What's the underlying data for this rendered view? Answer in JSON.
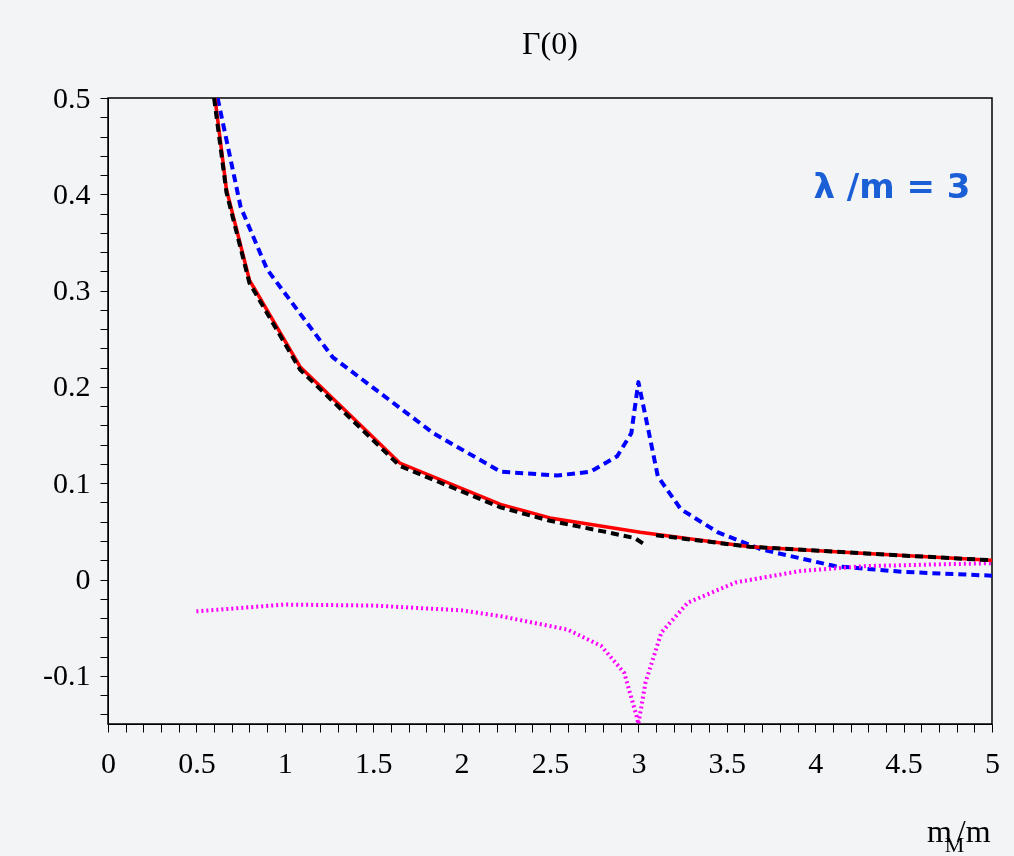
{
  "chart_data": {
    "type": "line",
    "title": "Γ(0)",
    "xlabel": "m$_{M}$/m",
    "annotations": [
      "λ /m = 3"
    ],
    "xlim": [
      0,
      5
    ],
    "ylim": [
      -0.15,
      0.5
    ],
    "xticks": [
      0,
      {
        "value": 0.1,
        "label": null
      },
      {
        "value": 0.2,
        "label": null
      },
      {
        "value": 0.3,
        "label": null
      },
      {
        "value": 0.4,
        "label": null
      },
      0.5,
      {
        "value": 0.6,
        "label": null
      },
      {
        "value": 0.7,
        "label": null
      },
      {
        "value": 0.8,
        "label": null
      },
      {
        "value": 0.9,
        "label": null
      },
      1,
      {
        "value": 1.1,
        "label": null
      },
      {
        "value": 1.2,
        "label": null
      },
      {
        "value": 1.3,
        "label": null
      },
      {
        "value": 1.4,
        "label": null
      },
      1.5,
      {
        "value": 1.6,
        "label": null
      },
      {
        "value": 1.7,
        "label": null
      },
      {
        "value": 1.8,
        "label": null
      },
      {
        "value": 1.9,
        "label": null
      },
      2,
      {
        "value": 2.1,
        "label": null
      },
      {
        "value": 2.2,
        "label": null
      },
      {
        "value": 2.3,
        "label": null
      },
      {
        "value": 2.4,
        "label": null
      },
      2.5,
      {
        "value": 2.6,
        "label": null
      },
      {
        "value": 2.7,
        "label": null
      },
      {
        "value": 2.8,
        "label": null
      },
      {
        "value": 2.9,
        "label": null
      },
      3,
      {
        "value": 3.1,
        "label": null
      },
      {
        "value": 3.2,
        "label": null
      },
      {
        "value": 3.3,
        "label": null
      },
      {
        "value": 3.4,
        "label": null
      },
      3.5,
      {
        "value": 3.6,
        "label": null
      },
      {
        "value": 3.7,
        "label": null
      },
      {
        "value": 3.8,
        "label": null
      },
      {
        "value": 3.9,
        "label": null
      },
      4,
      {
        "value": 4.1,
        "label": null
      },
      {
        "value": 4.2,
        "label": null
      },
      {
        "value": 4.3,
        "label": null
      },
      {
        "value": 4.4,
        "label": null
      },
      4.5,
      {
        "value": 4.6,
        "label": null
      },
      {
        "value": 4.7,
        "label": null
      },
      {
        "value": 4.8,
        "label": null
      },
      {
        "value": 4.9,
        "label": null
      },
      5
    ],
    "yticks": [
      {
        "value": -0.14,
        "label": null
      },
      {
        "value": -0.12,
        "label": null
      },
      -0.1,
      {
        "value": -0.08,
        "label": null
      },
      {
        "value": -0.06,
        "label": null
      },
      {
        "value": -0.04,
        "label": null
      },
      {
        "value": -0.02,
        "label": null
      },
      0,
      {
        "value": 0.02,
        "label": null
      },
      {
        "value": 0.04,
        "label": null
      },
      {
        "value": 0.06,
        "label": null
      },
      {
        "value": 0.08,
        "label": null
      },
      0.1,
      {
        "value": 0.12,
        "label": null
      },
      {
        "value": 0.14,
        "label": null
      },
      {
        "value": 0.16,
        "label": null
      },
      {
        "value": 0.18,
        "label": null
      },
      0.2,
      {
        "value": 0.22,
        "label": null
      },
      {
        "value": 0.24,
        "label": null
      },
      {
        "value": 0.26,
        "label": null
      },
      {
        "value": 0.28,
        "label": null
      },
      0.3,
      {
        "value": 0.32,
        "label": null
      },
      {
        "value": 0.34,
        "label": null
      },
      {
        "value": 0.36,
        "label": null
      },
      {
        "value": 0.38,
        "label": null
      },
      0.4,
      {
        "value": 0.42,
        "label": null
      },
      {
        "value": 0.44,
        "label": null
      },
      {
        "value": 0.46,
        "label": null
      },
      {
        "value": 0.48,
        "label": null
      },
      0.5
    ],
    "grid": false,
    "marker": "none",
    "series": [
      {
        "color": "#0000ff",
        "line_style": "dashed",
        "x": [
          0.62,
          0.75,
          0.9,
          1.27,
          1.84,
          2.22,
          2.54,
          2.73,
          2.88,
          2.96,
          3.0,
          3.06,
          3.11,
          3.24,
          3.45,
          3.7,
          4.11,
          4.49,
          5.0
        ],
        "values": [
          0.5,
          0.387,
          0.322,
          0.231,
          0.152,
          0.112,
          0.108,
          0.112,
          0.128,
          0.152,
          0.205,
          0.152,
          0.107,
          0.073,
          0.049,
          0.031,
          0.014,
          0.008,
          0.004
        ]
      },
      {
        "color": "#ff00ff",
        "line_style": "dotted",
        "x": [
          0.5,
          1.0,
          1.5,
          2.0,
          2.22,
          2.6,
          2.79,
          2.92,
          2.99,
          3.0,
          3.04,
          3.13,
          3.28,
          3.55,
          3.92,
          4.29,
          5.0
        ],
        "values": [
          -0.033,
          -0.026,
          -0.027,
          -0.032,
          -0.038,
          -0.052,
          -0.069,
          -0.097,
          -0.142,
          -0.15,
          -0.107,
          -0.055,
          -0.024,
          -0.003,
          0.009,
          0.014,
          0.017
        ]
      },
      {
        "color": "#ff0000",
        "line_style": "solid",
        "x": [
          0.605,
          0.67,
          0.8,
          1.086,
          1.65,
          2.22,
          2.5,
          3.01,
          3.63,
          4.29,
          5.0
        ],
        "values": [
          0.5,
          0.405,
          0.311,
          0.221,
          0.121,
          0.078,
          0.064,
          0.049,
          0.034,
          0.027,
          0.02
        ]
      },
      {
        "color": "#000000",
        "line_style": "dashed",
        "x": [
          0.6,
          0.67,
          0.8,
          1.086,
          1.65,
          2.22,
          2.5,
          2.8,
          2.98,
          3.03,
          null,
          3.1,
          3.63,
          4.29,
          5.0
        ],
        "values": [
          0.5,
          0.402,
          0.308,
          0.218,
          0.118,
          0.075,
          0.061,
          0.05,
          0.043,
          0.037,
          null,
          0.046,
          0.034,
          0.027,
          0.02
        ]
      }
    ]
  }
}
